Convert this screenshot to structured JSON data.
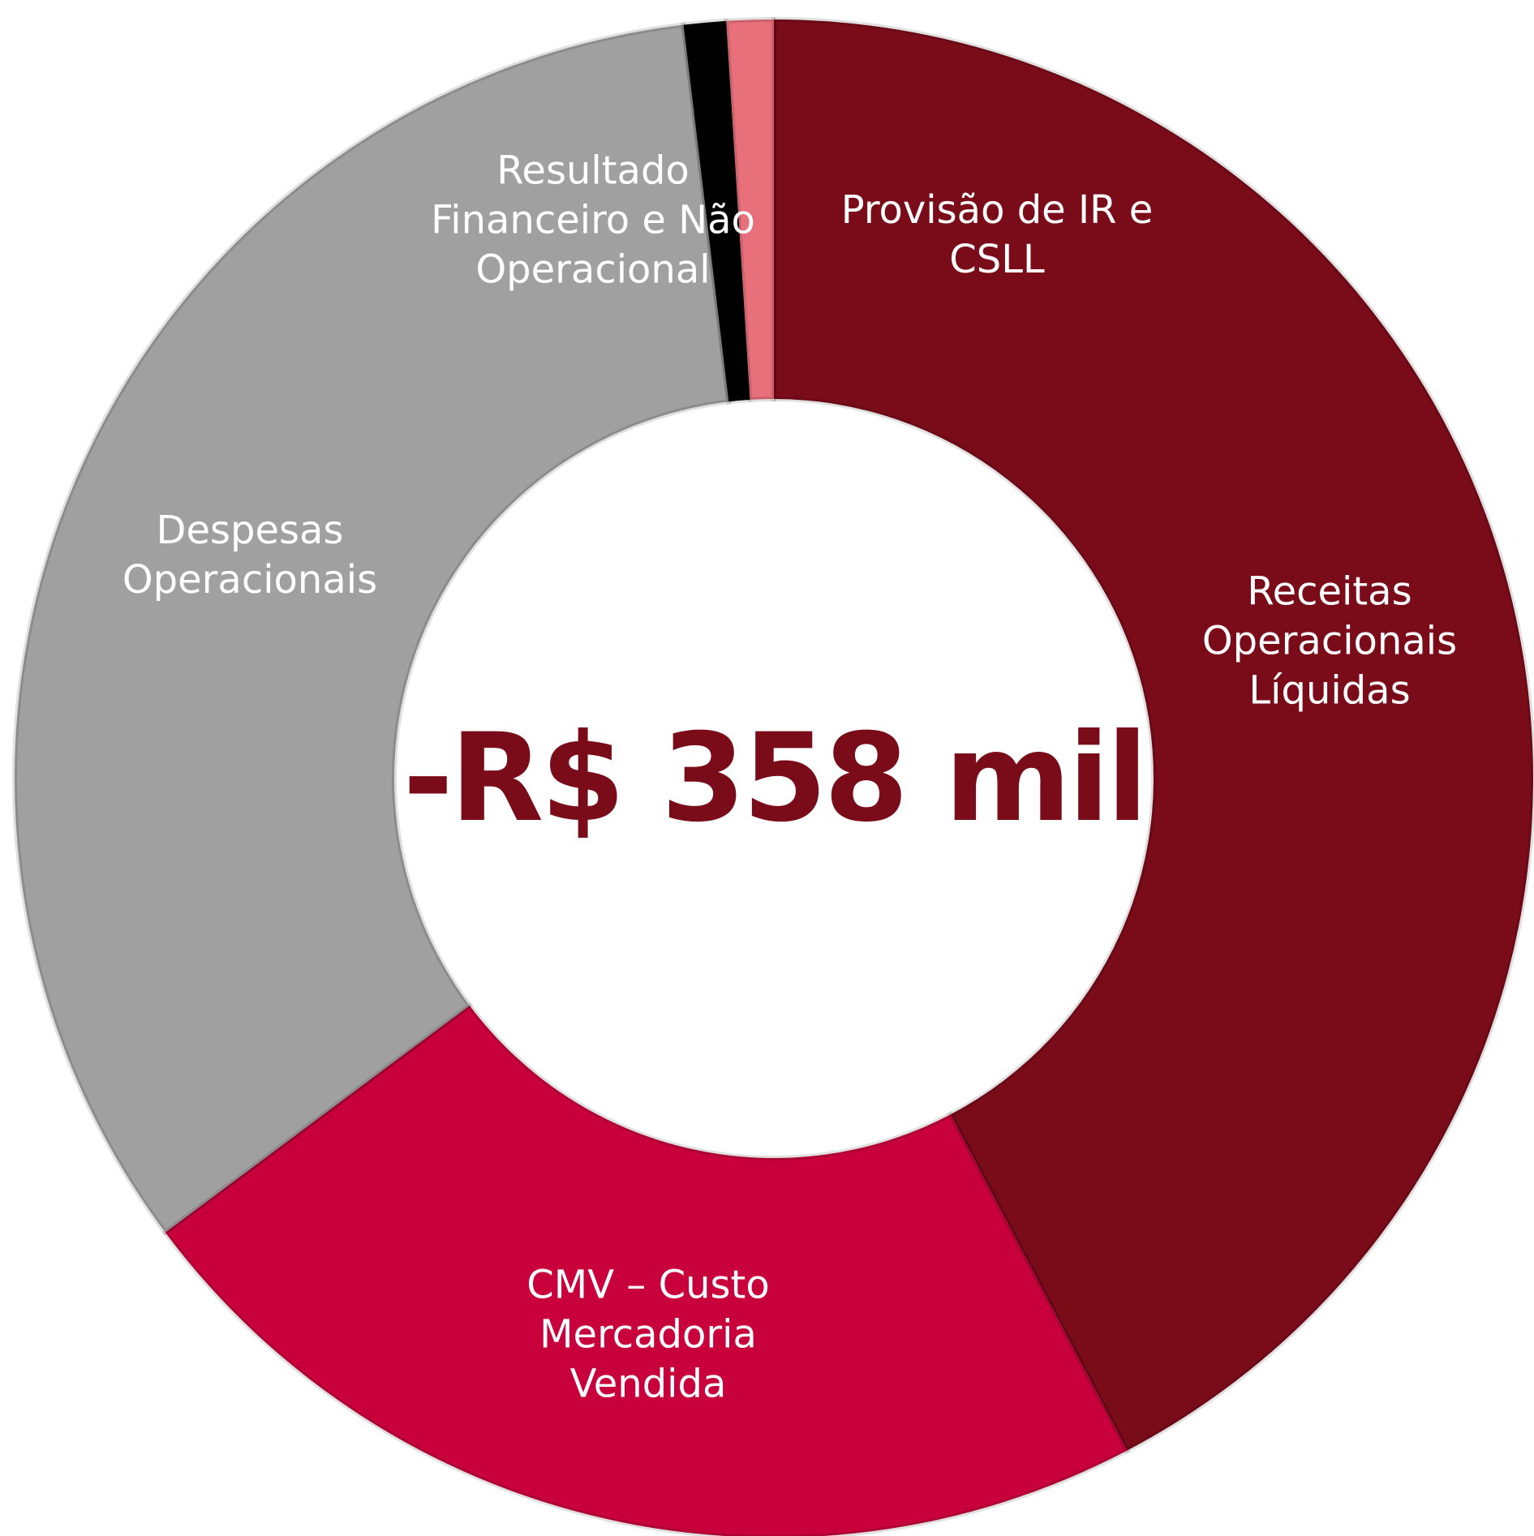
{
  "chart_data": {
    "type": "pie",
    "donut": true,
    "center_label": "-R$ 358 mil",
    "categories": [
      "Receitas Operacionais Líquidas",
      "CMV – Custo Mercadoria Vendida",
      "Despesas Operacionais",
      "Resultado Financeiro e Não Operacional",
      "Provisão de IR e CSLL"
    ],
    "values": [
      42.3,
      22.5,
      33.3,
      0.9,
      1.0
    ],
    "colors": [
      "#7a0c1a",
      "#c8003c",
      "#a0a0a0",
      "#000000",
      "#e8707a"
    ]
  }
}
